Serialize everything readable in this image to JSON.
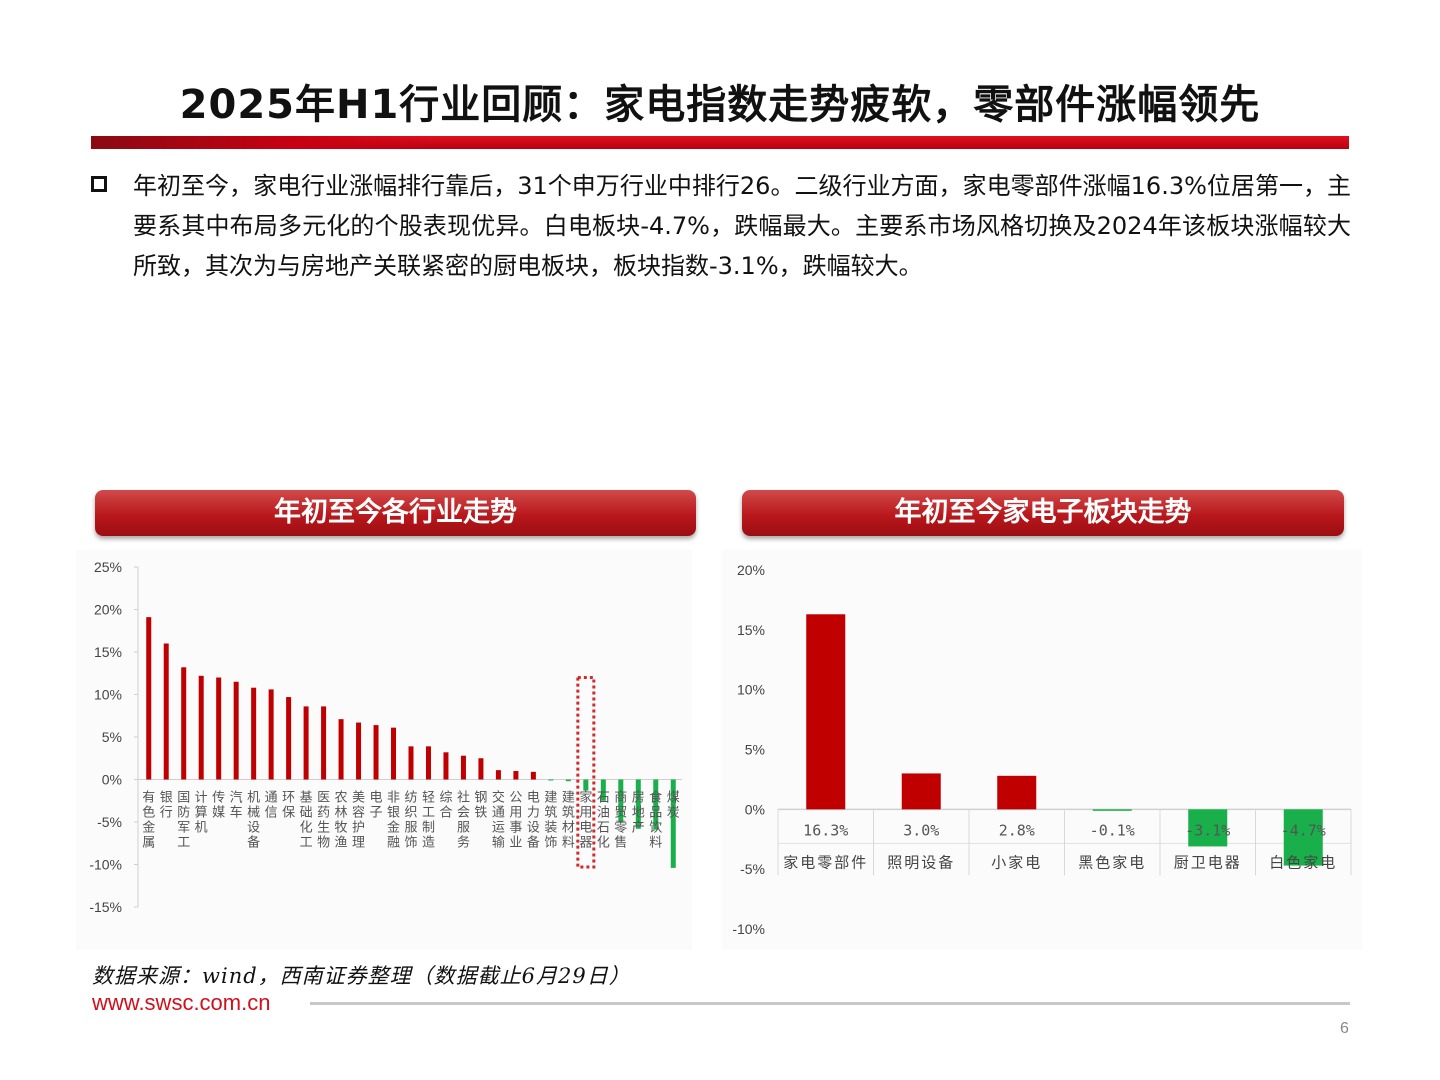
{
  "slide": {
    "title": "2025年H1行业回顾：家电指数走势疲软，零部件涨幅领先",
    "paragraph": "年初至今，家电行业涨幅排行靠后，31个申万行业中排行26。二级行业方面，家电零部件涨幅16.3%位居第一，主要系其中布局多元化的个股表现优异。白电板块-4.7%，跌幅最大。主要系市场风格切换及2024年该板块涨幅较大所致，其次为与房地产关联紧密的厨电板块，板块指数-3.1%，跌幅较大。",
    "source": "数据来源：wind，西南证券整理（数据截止6月29日）",
    "website": "www.swsc.com.cn",
    "page_number": "6"
  },
  "colors": {
    "positive": "#c00000",
    "negative": "#19b04b",
    "highlight_box": "#d12a2a"
  },
  "chart_data": [
    {
      "type": "bar",
      "header": "年初至今各行业走势",
      "ylim": [
        -15,
        25
      ],
      "yticks": [
        "-15%",
        "-10%",
        "-5%",
        "0%",
        "5%",
        "10%",
        "15%",
        "20%",
        "25%"
      ],
      "categories": [
        "有色金属",
        "银行",
        "国防军工",
        "计算机",
        "传媒",
        "汽车",
        "机械设备",
        "通信",
        "环保",
        "基础化工",
        "医药生物",
        "农林牧渔",
        "美容护理",
        "电子",
        "非银金融",
        "纺织服饰",
        "轻工制造",
        "综合",
        "社会服务",
        "钢铁",
        "交通运输",
        "公用事业",
        "电力设备",
        "建筑装饰",
        "建筑材料",
        "家用电器",
        "石油石化",
        "商贸零售",
        "房地产",
        "食品饮料",
        "煤炭"
      ],
      "values": [
        19.1,
        16.0,
        13.2,
        12.2,
        12.0,
        11.5,
        10.8,
        10.6,
        9.7,
        8.6,
        8.6,
        7.1,
        6.7,
        6.4,
        6.1,
        3.9,
        3.9,
        3.2,
        2.8,
        2.5,
        1.1,
        1.0,
        0.9,
        -0.1,
        -0.2,
        -1.3,
        -2.5,
        -5.0,
        -5.8,
        -5.9,
        -10.4
      ],
      "highlight_category": "家用电器"
    },
    {
      "type": "bar",
      "header": "年初至今家电子板块走势",
      "ylim": [
        -10,
        20
      ],
      "yticks": [
        "-10%",
        "-5%",
        "0%",
        "5%",
        "10%",
        "15%",
        "20%"
      ],
      "categories": [
        "家电零部件",
        "照明设备",
        "小家电",
        "黑色家电",
        "厨卫电器",
        "白色家电"
      ],
      "values": [
        16.3,
        3.0,
        2.8,
        -0.1,
        -3.1,
        -4.7
      ],
      "data_labels": [
        "16.3%",
        "3.0%",
        "2.8%",
        "-0.1%",
        "-3.1%",
        "-4.7%"
      ]
    }
  ]
}
